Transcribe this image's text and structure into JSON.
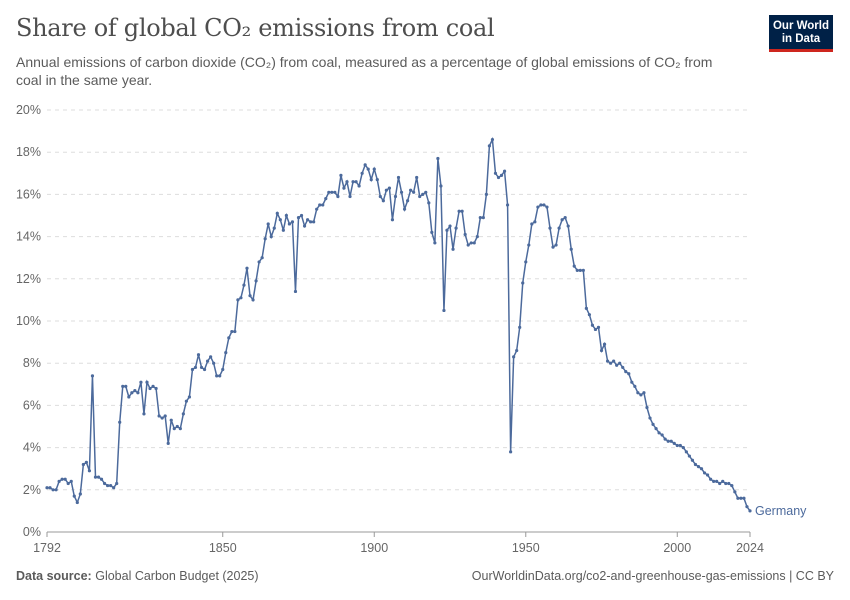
{
  "header": {
    "title": "Share of global CO₂ emissions from coal",
    "subtitle": "Annual emissions of carbon dioxide (CO₂) from coal, measured as a percentage of global emissions of CO₂ from coal in the same year.",
    "logo_line1": "Our World",
    "logo_line2": "in Data"
  },
  "footer": {
    "source_label": "Data source:",
    "source": "Global Carbon Budget (2025)",
    "url": "OurWorldinData.org/co2-and-greenhouse-gas-emissions | CC BY"
  },
  "colors": {
    "series": "#4c6a9c",
    "grid": "#dddddd",
    "logo_bg": "#002147",
    "logo_accent": "#ce261e"
  },
  "chart_data": {
    "type": "line",
    "title": "Share of global CO₂ emissions from coal",
    "xlabel": "",
    "ylabel": "",
    "xlim": [
      1792,
      2024
    ],
    "ylim": [
      0,
      20
    ],
    "x_ticks": [
      "1792",
      "1850",
      "1900",
      "1950",
      "2000",
      "2024"
    ],
    "x_tick_values": [
      1792,
      1850,
      1900,
      1950,
      2000,
      2024
    ],
    "y_ticks": [
      "0%",
      "2%",
      "4%",
      "6%",
      "8%",
      "10%",
      "12%",
      "14%",
      "16%",
      "18%",
      "20%"
    ],
    "y_tick_values": [
      0,
      2,
      4,
      6,
      8,
      10,
      12,
      14,
      16,
      18,
      20
    ],
    "grid": "horizontal dashed",
    "series": [
      {
        "name": "Germany",
        "start_year": 1792,
        "values": [
          2.1,
          2.1,
          2.0,
          2.0,
          2.4,
          2.5,
          2.5,
          2.3,
          2.4,
          1.7,
          1.4,
          1.8,
          3.2,
          3.3,
          2.9,
          7.4,
          2.6,
          2.6,
          2.5,
          2.3,
          2.2,
          2.2,
          2.1,
          2.3,
          5.2,
          6.9,
          6.9,
          6.4,
          6.6,
          6.7,
          6.6,
          7.1,
          5.6,
          7.1,
          6.8,
          6.9,
          6.8,
          5.5,
          5.4,
          5.5,
          4.2,
          5.3,
          4.9,
          5.0,
          4.9,
          5.6,
          6.2,
          6.4,
          7.7,
          7.8,
          8.4,
          7.8,
          7.7,
          8.1,
          8.3,
          8.0,
          7.4,
          7.4,
          7.7,
          8.5,
          9.2,
          9.5,
          9.5,
          11.0,
          11.1,
          11.7,
          12.5,
          11.2,
          11.0,
          11.9,
          12.8,
          13.0,
          13.9,
          14.6,
          14.0,
          14.4,
          15.1,
          14.8,
          14.3,
          15.0,
          14.6,
          14.7,
          11.4,
          14.9,
          15.0,
          14.5,
          14.8,
          14.7,
          14.7,
          15.3,
          15.5,
          15.5,
          15.8,
          16.1,
          16.1,
          16.1,
          15.9,
          16.9,
          16.3,
          16.6,
          15.9,
          16.6,
          16.6,
          16.4,
          17.0,
          17.4,
          17.2,
          16.7,
          17.2,
          16.7,
          15.9,
          15.7,
          16.2,
          16.3,
          14.8,
          15.9,
          16.8,
          16.1,
          15.3,
          15.7,
          16.2,
          16.1,
          16.8,
          15.9,
          16.0,
          16.1,
          15.6,
          14.2,
          13.7,
          17.7,
          16.4,
          10.5,
          14.3,
          14.5,
          13.4,
          14.4,
          15.2,
          15.2,
          14.1,
          13.6,
          13.7,
          13.7,
          14.0,
          14.9,
          14.9,
          16.0,
          18.3,
          18.6,
          17.0,
          16.8,
          16.9,
          17.1,
          15.5,
          3.8,
          8.3,
          8.6,
          9.7,
          11.8,
          12.8,
          13.6,
          14.6,
          14.7,
          15.4,
          15.5,
          15.5,
          15.4,
          14.4,
          13.5,
          13.6,
          14.4,
          14.8,
          14.9,
          14.5,
          13.4,
          12.6,
          12.4,
          12.4,
          12.4,
          10.6,
          10.3,
          9.8,
          9.6,
          9.7,
          8.6,
          8.9,
          8.1,
          8.0,
          8.1,
          7.9,
          8.0,
          7.8,
          7.6,
          7.5,
          7.1,
          6.9,
          6.6,
          6.5,
          6.6,
          5.9,
          5.4,
          5.1,
          4.9,
          4.7,
          4.6,
          4.4,
          4.3,
          4.3,
          4.2,
          4.1,
          4.1,
          4.0,
          3.8,
          3.6,
          3.4,
          3.2,
          3.1,
          3.0,
          2.8,
          2.7,
          2.5,
          2.4,
          2.4,
          2.3,
          2.4,
          2.3,
          2.3,
          2.2,
          1.9,
          1.6,
          1.6,
          1.6,
          1.2,
          1.0
        ]
      }
    ]
  }
}
